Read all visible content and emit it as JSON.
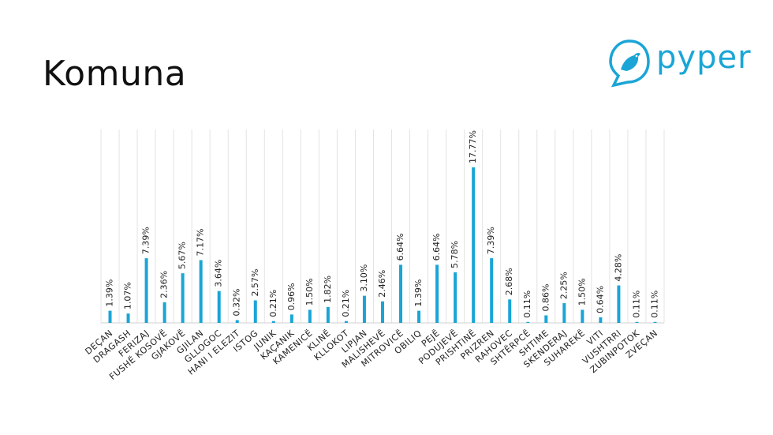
{
  "page": {
    "title": "Komuna"
  },
  "logo": {
    "text": "pyper",
    "color": "#1aa5d6",
    "icon": "bird-icon"
  },
  "chart_data": {
    "type": "bar",
    "categories": [
      "DEÇAN",
      "DRAGASH",
      "FERIZAJ",
      "FUSHË KOSOVË",
      "GJAKOVË",
      "GJILAN",
      "GLLOGOC",
      "HANI I ELEZIT",
      "ISTOG",
      "JUNIK",
      "KAÇANIK",
      "KAMENICË",
      "KLINË",
      "KLLOKOT",
      "LIPJAN",
      "MALISHEVË",
      "MITROVICË",
      "OBILIQ",
      "PEJË",
      "PODUJEVË",
      "PRISHTINË",
      "PRIZREN",
      "RAHOVEC",
      "SHTËRPCË",
      "SHTIME",
      "SKENDERAJ",
      "SUHAREKË",
      "VITI",
      "VUSHTRRI",
      "ZUBINPOTOK",
      "ZVEÇAN"
    ],
    "values": [
      1.39,
      1.07,
      7.39,
      2.36,
      5.67,
      7.17,
      3.64,
      0.32,
      2.57,
      0.21,
      0.96,
      1.5,
      1.82,
      0.21,
      3.1,
      2.46,
      6.64,
      1.39,
      6.64,
      5.78,
      17.77,
      7.39,
      2.68,
      0.11,
      0.86,
      2.25,
      1.5,
      0.64,
      4.28,
      0.11,
      0.11
    ],
    "labels": [
      "1.39%",
      "1.07%",
      "7.39%",
      "2.36%",
      "5.67%",
      "7.17%",
      "3.64%",
      "0.32%",
      "2.57%",
      "0.21%",
      "0.96%",
      "1.50%",
      "1.82%",
      "0.21%",
      "3.10%",
      "2.46%",
      "6.64%",
      "1.39%",
      "6.64%",
      "5.78%",
      "17.77%",
      "7.39%",
      "2.68%",
      "0.11%",
      "0.86%",
      "2.25%",
      "1.50%",
      "0.64%",
      "4.28%",
      "0.11%",
      "0.11%"
    ],
    "ylim": [
      0,
      20
    ],
    "bar_color": "#1aa5d6",
    "grid": true
  }
}
